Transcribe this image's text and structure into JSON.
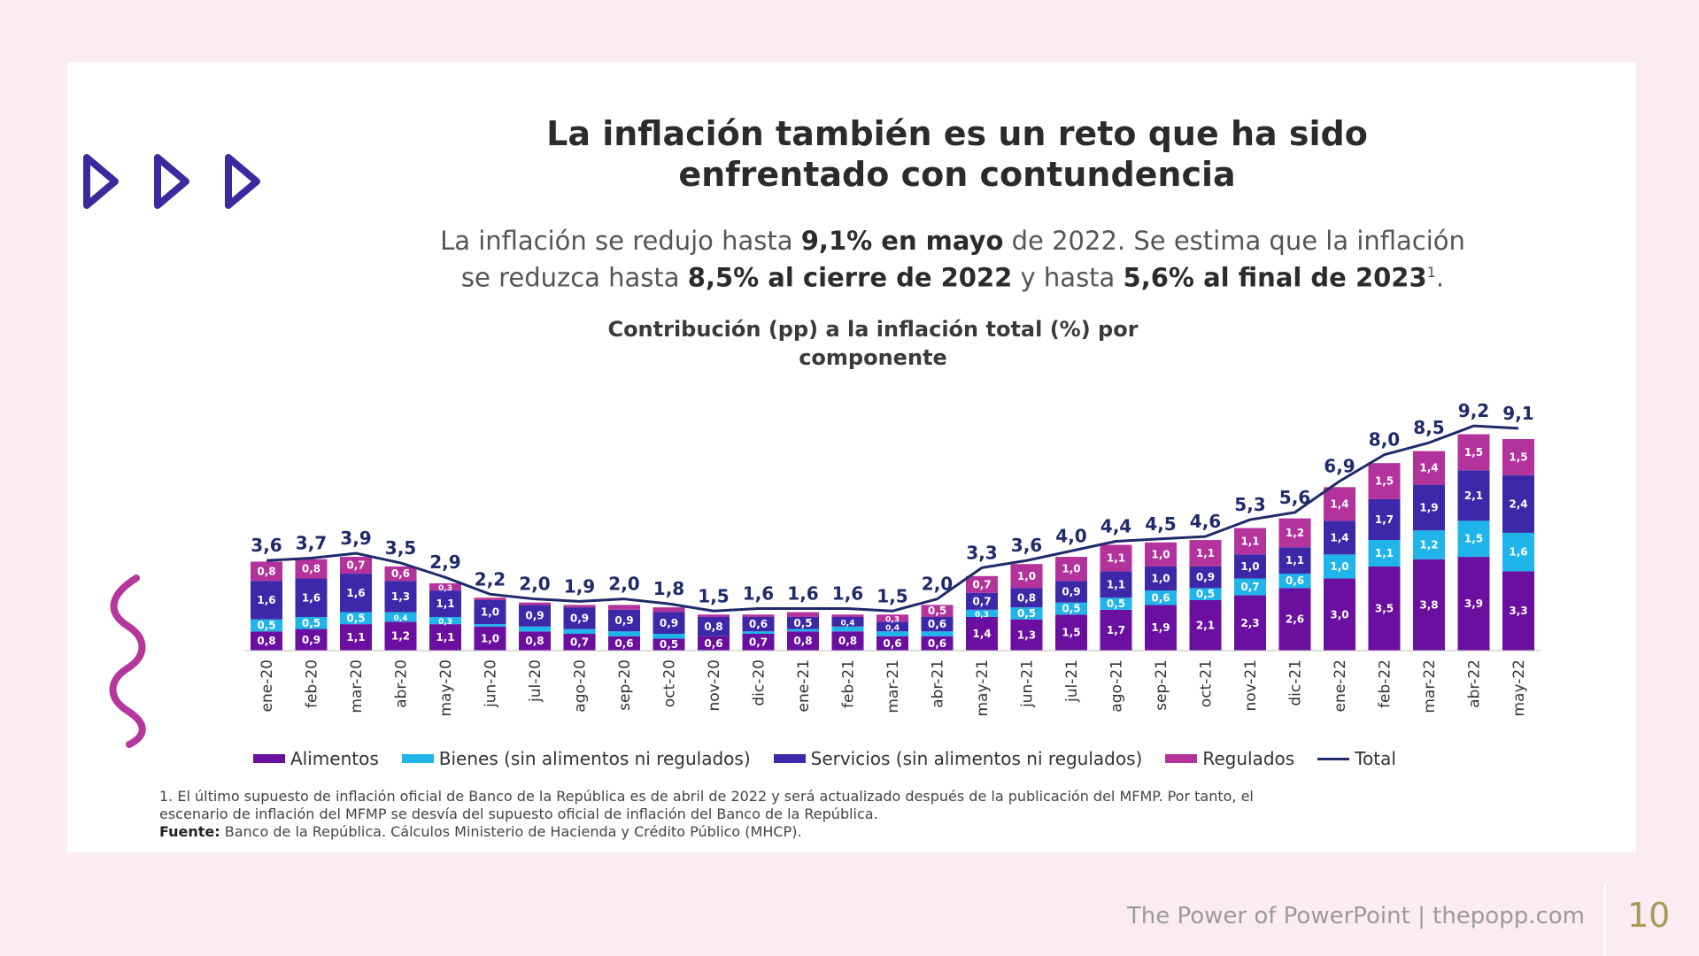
{
  "slide": {
    "title_line1": "La inflación también es un reto que ha sido",
    "title_line2": "enfrentado con contundencia",
    "subtitle_line1": {
      "a": "La inflación se redujo hasta ",
      "b": "9,1% en mayo",
      "c": " de 2022. Se estima que la inflación"
    },
    "subtitle_line2": {
      "a": "se reduzca hasta ",
      "b": "8,5% al cierre de 2022",
      "c": " y hasta ",
      "d": "5,6% al final de 2023",
      "sup": "1",
      "e": "."
    },
    "note1": "1. El último supuesto de inflación oficial de Banco de la República es de abril de 2022 y será actualizado después de la publicación del MFMP. Por tanto, el",
    "note2": "escenario de inflación del MFMP se desvía del supuesto oficial de inflación del Banco de la República.",
    "source_label": "Fuente:",
    "source_text": " Banco de la República. Cálculos Ministerio de Hacienda y Crédito Público (MHCP).",
    "icons": [
      "play-arrow-icon",
      "squiggle-icon"
    ],
    "accent_color": "#3b2a9e",
    "squiggle_color": "#b5369c"
  },
  "footer": {
    "text": "The Power of PowerPoint | thepopp.com",
    "page_number": "10"
  },
  "chart_data": {
    "type": "bar",
    "stacked": true,
    "title_line1": "Contribución (pp) a la inflación total (%) por",
    "title_line2": "componente",
    "categories": [
      "ene-20",
      "feb-20",
      "mar-20",
      "abr-20",
      "may-20",
      "jun-20",
      "jul-20",
      "ago-20",
      "sep-20",
      "oct-20",
      "nov-20",
      "dic-20",
      "ene-21",
      "feb-21",
      "mar-21",
      "abr-21",
      "may-21",
      "jun-21",
      "jul-21",
      "ago-21",
      "sep-21",
      "oct-21",
      "nov-21",
      "dic-21",
      "ene-22",
      "feb-22",
      "mar-22",
      "abr-22",
      "may-22"
    ],
    "series": [
      {
        "name": "Alimentos",
        "color": "#6a0fa0",
        "values": [
          0.8,
          0.9,
          1.1,
          1.2,
          1.1,
          1.0,
          0.8,
          0.7,
          0.6,
          0.5,
          0.6,
          0.7,
          0.8,
          0.8,
          0.6,
          0.6,
          1.4,
          1.3,
          1.5,
          1.7,
          1.9,
          2.1,
          2.3,
          2.6,
          3.0,
          3.5,
          3.8,
          3.9,
          3.3
        ]
      },
      {
        "name": "Bienes (sin alimentos ni regulados)",
        "color": "#1fb4ea",
        "values": [
          0.5,
          0.5,
          0.5,
          0.4,
          0.3,
          0.1,
          0.2,
          0.2,
          0.2,
          0.2,
          0.0,
          0.1,
          0.1,
          0.2,
          0.2,
          0.2,
          0.3,
          0.5,
          0.5,
          0.5,
          0.6,
          0.5,
          0.7,
          0.6,
          1.0,
          1.1,
          1.2,
          1.5,
          1.6
        ]
      },
      {
        "name": "Servicios (sin alimentos ni regulados)",
        "color": "#3c28a8",
        "values": [
          1.6,
          1.6,
          1.6,
          1.3,
          1.1,
          1.0,
          0.9,
          0.9,
          0.9,
          0.9,
          0.8,
          0.6,
          0.5,
          0.4,
          0.4,
          0.6,
          0.7,
          0.8,
          0.9,
          1.1,
          1.0,
          0.9,
          1.0,
          1.1,
          1.4,
          1.7,
          1.9,
          2.1,
          2.4
        ]
      },
      {
        "name": "Regulados",
        "color": "#b3329c",
        "values": [
          0.8,
          0.8,
          0.7,
          0.6,
          0.3,
          0.1,
          0.1,
          0.1,
          0.2,
          0.2,
          0.1,
          0.1,
          0.2,
          0.1,
          0.3,
          0.5,
          0.7,
          1.0,
          1.0,
          1.1,
          1.0,
          1.1,
          1.1,
          1.2,
          1.4,
          1.5,
          1.4,
          1.5,
          1.5
        ]
      }
    ],
    "total": {
      "name": "Total",
      "color": "#1f2a6b",
      "values": [
        3.6,
        3.7,
        3.9,
        3.5,
        2.9,
        2.2,
        2.0,
        1.9,
        2.0,
        1.8,
        1.5,
        1.6,
        1.6,
        1.6,
        1.5,
        2.0,
        3.3,
        3.6,
        4.0,
        4.4,
        4.5,
        4.6,
        5.3,
        5.6,
        6.9,
        8.0,
        8.5,
        9.2,
        9.1
      ],
      "labels": [
        "3,6",
        "3,7",
        "3,9",
        "3,5",
        "2,9",
        "2,2",
        "2,0",
        "1,9",
        "2,0",
        "1,8",
        "1,5",
        "1,6",
        "1,6",
        "1,6",
        "1,5",
        "2,0",
        "3,3",
        "3,6",
        "4,0",
        "4,4",
        "4,5",
        "4,6",
        "5,3",
        "5,6",
        "6,9",
        "8,0",
        "8,5",
        "9,2",
        "9,1"
      ]
    },
    "ylim": [
      0,
      9.5
    ],
    "grid": false,
    "legend_position": "bottom"
  }
}
